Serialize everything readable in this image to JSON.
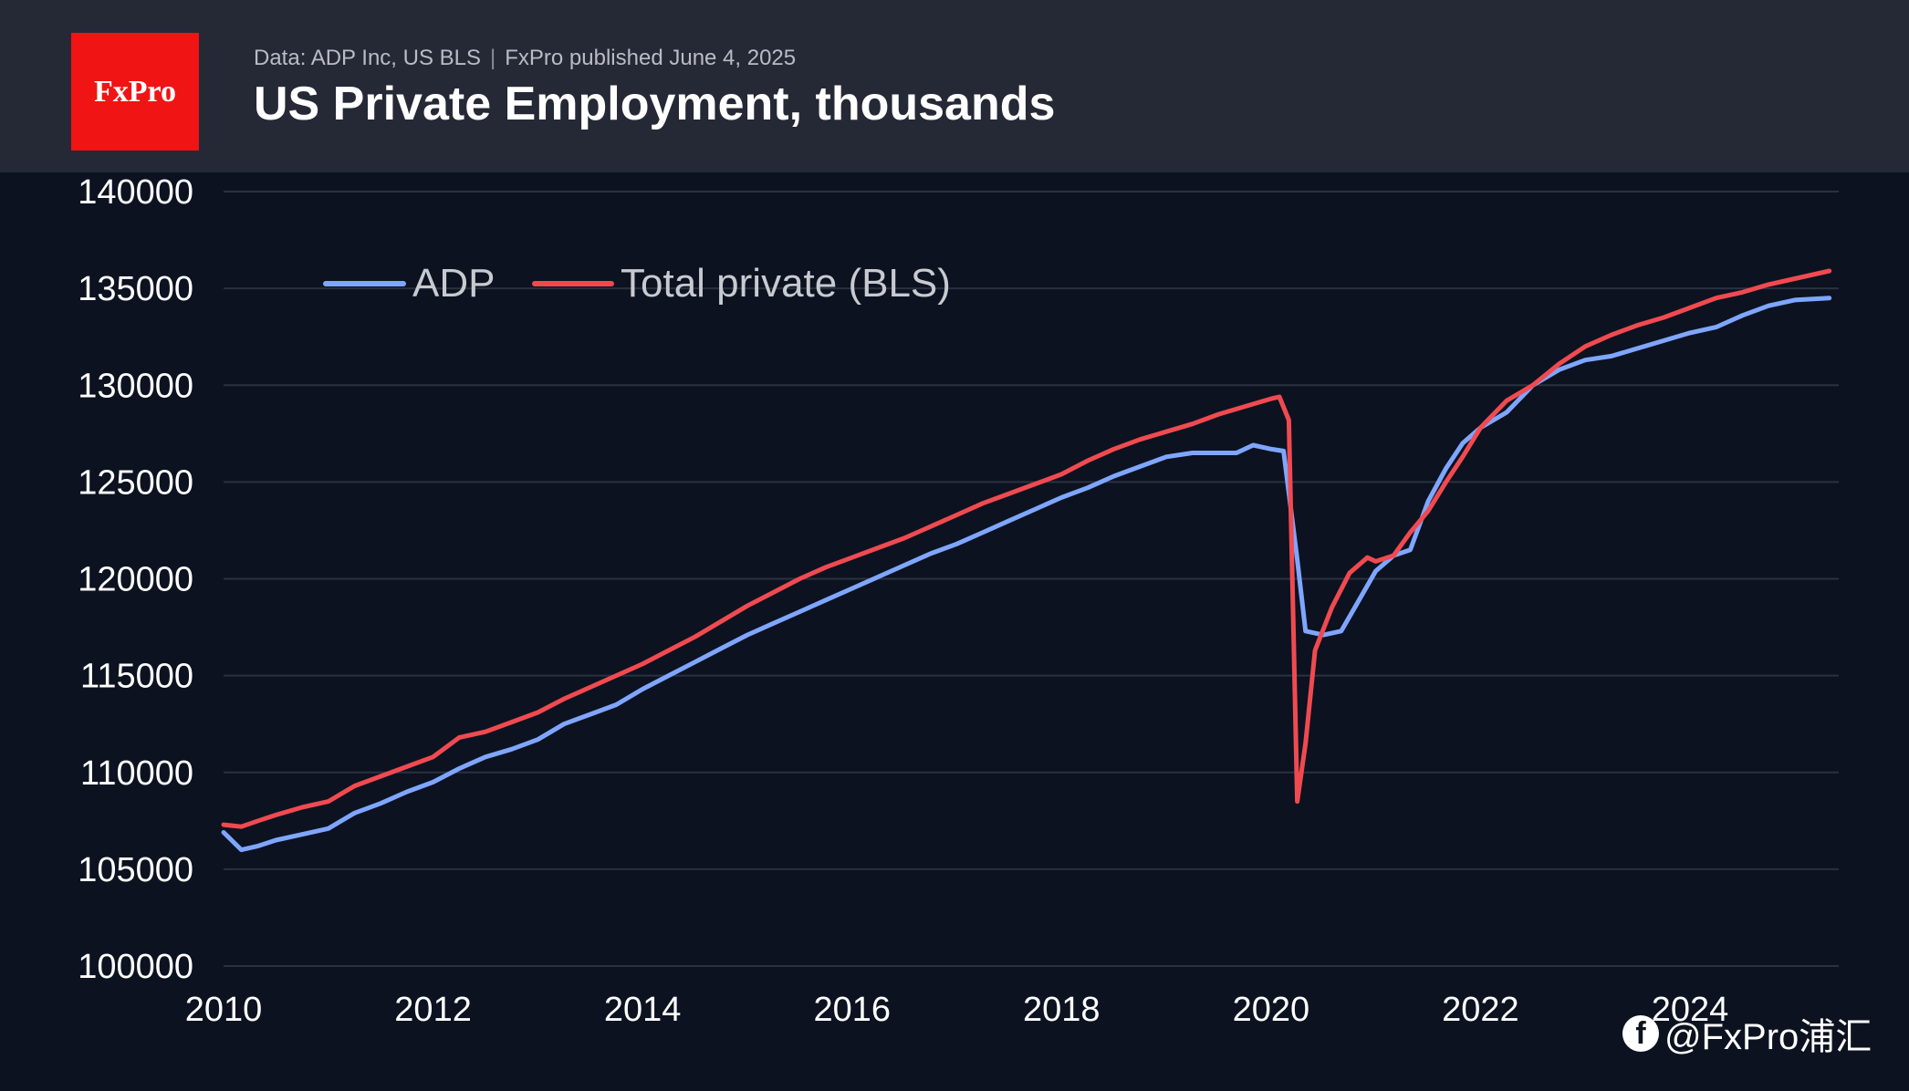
{
  "header": {
    "logo_text": "FxPro",
    "source": "Data: ADP Inc, US BLS",
    "published": "FxPro published June 4, 2025",
    "title": "US Private Employment, thousands"
  },
  "watermark": {
    "icon": "facebook-icon",
    "text": "@FxPro浦汇"
  },
  "chart_data": {
    "type": "line",
    "title": "US Private Employment, thousands",
    "xlabel": "",
    "ylabel": "",
    "xlim": [
      2010,
      2025.42
    ],
    "ylim": [
      100000,
      140000
    ],
    "x_ticks": [
      "2010",
      "2012",
      "2014",
      "2016",
      "2018",
      "2020",
      "2022",
      "2024"
    ],
    "y_ticks": [
      "100000",
      "105000",
      "110000",
      "115000",
      "120000",
      "125000",
      "130000",
      "135000",
      "140000"
    ],
    "grid": "horizontal",
    "legend_position": "top-left",
    "series": [
      {
        "name": "ADP",
        "color": "#7fa6ff",
        "points": [
          [
            2010.0,
            106900
          ],
          [
            2010.17,
            106000
          ],
          [
            2010.33,
            106200
          ],
          [
            2010.5,
            106500
          ],
          [
            2010.75,
            106800
          ],
          [
            2011.0,
            107100
          ],
          [
            2011.25,
            107900
          ],
          [
            2011.5,
            108400
          ],
          [
            2011.75,
            109000
          ],
          [
            2012.0,
            109500
          ],
          [
            2012.25,
            110200
          ],
          [
            2012.5,
            110800
          ],
          [
            2012.75,
            111200
          ],
          [
            2013.0,
            111700
          ],
          [
            2013.25,
            112500
          ],
          [
            2013.5,
            113000
          ],
          [
            2013.75,
            113500
          ],
          [
            2014.0,
            114300
          ],
          [
            2014.25,
            115000
          ],
          [
            2014.5,
            115700
          ],
          [
            2014.75,
            116400
          ],
          [
            2015.0,
            117100
          ],
          [
            2015.25,
            117700
          ],
          [
            2015.5,
            118300
          ],
          [
            2015.75,
            118900
          ],
          [
            2016.0,
            119500
          ],
          [
            2016.25,
            120100
          ],
          [
            2016.5,
            120700
          ],
          [
            2016.75,
            121300
          ],
          [
            2017.0,
            121800
          ],
          [
            2017.25,
            122400
          ],
          [
            2017.5,
            123000
          ],
          [
            2017.75,
            123600
          ],
          [
            2018.0,
            124200
          ],
          [
            2018.25,
            124700
          ],
          [
            2018.5,
            125300
          ],
          [
            2018.75,
            125800
          ],
          [
            2019.0,
            126300
          ],
          [
            2019.25,
            126500
          ],
          [
            2019.5,
            126500
          ],
          [
            2019.67,
            126500
          ],
          [
            2019.83,
            126900
          ],
          [
            2020.0,
            126700
          ],
          [
            2020.12,
            126600
          ],
          [
            2020.25,
            121000
          ],
          [
            2020.33,
            117300
          ],
          [
            2020.5,
            117100
          ],
          [
            2020.67,
            117300
          ],
          [
            2020.83,
            118800
          ],
          [
            2021.0,
            120400
          ],
          [
            2021.17,
            121200
          ],
          [
            2021.33,
            121500
          ],
          [
            2021.5,
            124000
          ],
          [
            2021.67,
            125700
          ],
          [
            2021.83,
            127000
          ],
          [
            2022.0,
            127800
          ],
          [
            2022.25,
            128600
          ],
          [
            2022.5,
            130000
          ],
          [
            2022.75,
            130800
          ],
          [
            2023.0,
            131300
          ],
          [
            2023.25,
            131500
          ],
          [
            2023.5,
            131900
          ],
          [
            2023.75,
            132300
          ],
          [
            2024.0,
            132700
          ],
          [
            2024.25,
            133000
          ],
          [
            2024.5,
            133600
          ],
          [
            2024.75,
            134100
          ],
          [
            2025.0,
            134400
          ],
          [
            2025.33,
            134500
          ]
        ]
      },
      {
        "name": "Total private (BLS)",
        "color": "#f04a50",
        "points": [
          [
            2010.0,
            107300
          ],
          [
            2010.17,
            107200
          ],
          [
            2010.33,
            107500
          ],
          [
            2010.5,
            107800
          ],
          [
            2010.75,
            108200
          ],
          [
            2011.0,
            108500
          ],
          [
            2011.25,
            109300
          ],
          [
            2011.5,
            109800
          ],
          [
            2011.75,
            110300
          ],
          [
            2012.0,
            110800
          ],
          [
            2012.25,
            111800
          ],
          [
            2012.5,
            112100
          ],
          [
            2012.75,
            112600
          ],
          [
            2013.0,
            113100
          ],
          [
            2013.25,
            113800
          ],
          [
            2013.5,
            114400
          ],
          [
            2013.75,
            115000
          ],
          [
            2014.0,
            115600
          ],
          [
            2014.25,
            116300
          ],
          [
            2014.5,
            117000
          ],
          [
            2014.75,
            117800
          ],
          [
            2015.0,
            118600
          ],
          [
            2015.25,
            119300
          ],
          [
            2015.5,
            120000
          ],
          [
            2015.75,
            120600
          ],
          [
            2016.0,
            121100
          ],
          [
            2016.25,
            121600
          ],
          [
            2016.5,
            122100
          ],
          [
            2016.75,
            122700
          ],
          [
            2017.0,
            123300
          ],
          [
            2017.25,
            123900
          ],
          [
            2017.5,
            124400
          ],
          [
            2017.75,
            124900
          ],
          [
            2018.0,
            125400
          ],
          [
            2018.25,
            126100
          ],
          [
            2018.5,
            126700
          ],
          [
            2018.75,
            127200
          ],
          [
            2019.0,
            127600
          ],
          [
            2019.25,
            128000
          ],
          [
            2019.5,
            128500
          ],
          [
            2019.75,
            128900
          ],
          [
            2020.0,
            129300
          ],
          [
            2020.08,
            129400
          ],
          [
            2020.17,
            128200
          ],
          [
            2020.25,
            108500
          ],
          [
            2020.33,
            111500
          ],
          [
            2020.42,
            116300
          ],
          [
            2020.58,
            118500
          ],
          [
            2020.75,
            120300
          ],
          [
            2020.92,
            121100
          ],
          [
            2021.0,
            120900
          ],
          [
            2021.17,
            121200
          ],
          [
            2021.33,
            122400
          ],
          [
            2021.5,
            123500
          ],
          [
            2021.67,
            125000
          ],
          [
            2021.83,
            126300
          ],
          [
            2022.0,
            127800
          ],
          [
            2022.25,
            129200
          ],
          [
            2022.5,
            130000
          ],
          [
            2022.75,
            131100
          ],
          [
            2023.0,
            132000
          ],
          [
            2023.25,
            132600
          ],
          [
            2023.5,
            133100
          ],
          [
            2023.75,
            133500
          ],
          [
            2024.0,
            134000
          ],
          [
            2024.25,
            134500
          ],
          [
            2024.5,
            134800
          ],
          [
            2024.75,
            135200
          ],
          [
            2025.0,
            135500
          ],
          [
            2025.33,
            135900
          ]
        ]
      }
    ]
  }
}
